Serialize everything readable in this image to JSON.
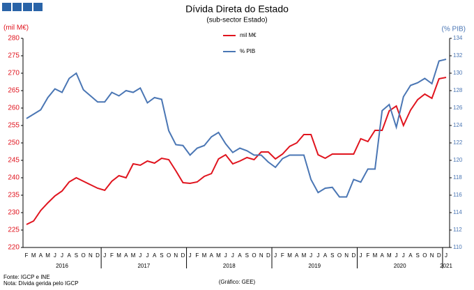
{
  "chart_data": {
    "type": "line",
    "title": "Dívida Direta do Estado",
    "subtitle": "(sub-sector Estado)",
    "y_label": "(mil M€)",
    "y2_label": "(% PIB)",
    "categories": [
      "F",
      "M",
      "A",
      "M",
      "J",
      "J",
      "A",
      "S",
      "O",
      "N",
      "D",
      "J",
      "F",
      "M",
      "A",
      "M",
      "J",
      "J",
      "A",
      "S",
      "O",
      "N",
      "D",
      "J",
      "F",
      "M",
      "A",
      "M",
      "J",
      "J",
      "A",
      "S",
      "O",
      "N",
      "D",
      "J",
      "F",
      "M",
      "A",
      "M",
      "J",
      "J",
      "A",
      "S",
      "O",
      "N",
      "D",
      "J",
      "F",
      "M",
      "A",
      "M",
      "J",
      "J",
      "A",
      "S",
      "O",
      "N",
      "D",
      "J"
    ],
    "years": [
      "2016",
      "2017",
      "2018",
      "2019",
      "2020",
      "2021"
    ],
    "series": [
      {
        "name": "mil M€",
        "color": "#e0141e",
        "values": [
          226.6,
          227.6,
          230.6,
          232.8,
          234.8,
          236.2,
          238.8,
          240,
          239,
          238,
          237,
          236.4,
          239,
          240.6,
          240,
          244,
          243.6,
          244.8,
          244.2,
          245.6,
          245.2,
          242,
          238.6,
          238.4,
          238.8,
          240.4,
          241.2,
          245.4,
          246.6,
          244,
          244.8,
          245.8,
          245.2,
          247.4,
          247.4,
          245.4,
          246.8,
          249,
          250,
          252.4,
          252.4,
          246.6,
          245.6,
          246.8,
          246.8,
          246.8,
          246.8,
          251.2,
          250.4,
          253.6,
          253.6,
          259.2,
          260.6,
          255,
          259.4,
          262.4,
          264,
          262.8,
          268.4,
          268.8
        ]
      },
      {
        "name": "% PIB",
        "color": "#4a76b4",
        "axis": "y2",
        "values": [
          124.8,
          125.3,
          125.8,
          127.2,
          128.2,
          127.8,
          129.4,
          130,
          128.1,
          127.4,
          126.7,
          126.7,
          127.8,
          127.4,
          128,
          127.8,
          128.3,
          126.6,
          127.2,
          127,
          123.4,
          121.8,
          121.7,
          120.6,
          121.4,
          121.7,
          122.7,
          123.2,
          121.9,
          120.9,
          121.4,
          121.1,
          120.6,
          120.6,
          119.8,
          119.2,
          120.2,
          120.6,
          120.6,
          120.6,
          117.8,
          116.3,
          116.8,
          116.9,
          115.8,
          115.8,
          117.8,
          117.5,
          119,
          119,
          125.7,
          126.4,
          123.8,
          127.3,
          128.6,
          128.9,
          129.4,
          128.8,
          131.4,
          131.6
        ]
      }
    ],
    "ylim": [
      220,
      280
    ],
    "yticks": [
      220,
      225,
      230,
      235,
      240,
      245,
      250,
      255,
      260,
      265,
      270,
      275,
      280
    ],
    "y2lim": [
      110,
      134
    ],
    "y2ticks": [
      110,
      112,
      114,
      116,
      118,
      120,
      122,
      124,
      126,
      128,
      130,
      132,
      134
    ],
    "notes": [
      "Fonte: IGCP e INE",
      "Nota: Dívida gerida pelo IGCP"
    ],
    "credit": "(Gráfico: GEE)"
  }
}
